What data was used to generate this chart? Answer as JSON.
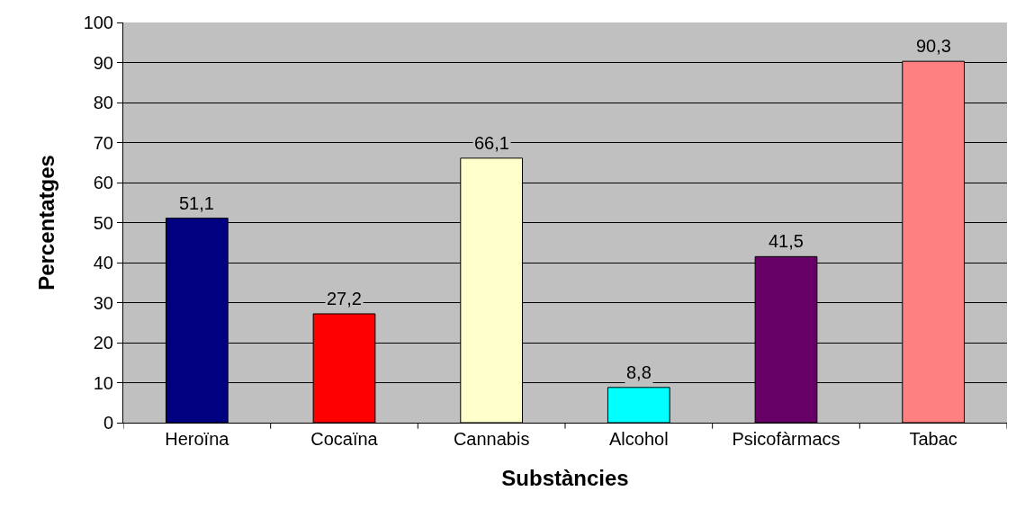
{
  "chart_data": {
    "type": "bar",
    "xlabel": "Substàncies",
    "ylabel": "Percentatges",
    "categories": [
      "Heroïna",
      "Cocaïna",
      "Cannabis",
      "Alcohol",
      "Psicofàrmacs",
      "Tabac"
    ],
    "values": [
      51.1,
      27.2,
      66.1,
      8.8,
      41.5,
      90.3
    ],
    "colors": [
      "#000080",
      "#ff0000",
      "#ffffcc",
      "#00ffff",
      "#660066",
      "#ff8080"
    ],
    "value_labels": [
      "51,1",
      "27,2",
      "66,1",
      "8,8",
      "41,5",
      "90,3"
    ],
    "ylim": [
      0,
      100
    ],
    "yticks": [
      0,
      10,
      20,
      30,
      40,
      50,
      60,
      70,
      80,
      90,
      100
    ],
    "grid": "y",
    "legend": false
  }
}
